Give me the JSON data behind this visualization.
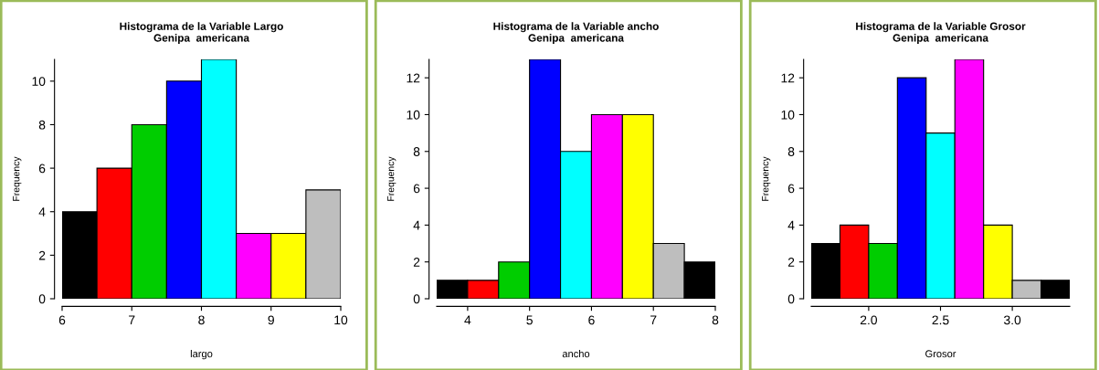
{
  "chart_data": [
    {
      "type": "histogram",
      "title": "Histograma de la Variable Largo\nGenipa  americana",
      "xlabel": "largo",
      "ylabel": "Frequency",
      "bins": [
        6,
        6.5,
        7,
        7.5,
        8,
        8.5,
        9,
        9.5,
        10
      ],
      "values": [
        4,
        6,
        8,
        10,
        11,
        3,
        3,
        5
      ],
      "colors": [
        "#000000",
        "#ff0000",
        "#00cd00",
        "#0000ff",
        "#00ffff",
        "#ff00ff",
        "#ffff00",
        "#bebebe"
      ],
      "xlim": [
        6,
        10
      ],
      "xticks": [
        6,
        7,
        8,
        9,
        10
      ],
      "ylim": [
        0,
        11
      ],
      "yticks": [
        0,
        2,
        4,
        6,
        8,
        10
      ],
      "grid": false
    },
    {
      "type": "histogram",
      "title": "Histograma de la Variable ancho\nGenipa  americana",
      "xlabel": "ancho",
      "ylabel": "Frequency",
      "bins": [
        3.5,
        4,
        4.5,
        5,
        5.5,
        6,
        6.5,
        7,
        7.5,
        8
      ],
      "values": [
        1,
        1,
        2,
        13,
        8,
        10,
        10,
        3,
        2
      ],
      "colors": [
        "#000000",
        "#ff0000",
        "#00cd00",
        "#0000ff",
        "#00ffff",
        "#ff00ff",
        "#ffff00",
        "#bebebe",
        "#000000"
      ],
      "xlim": [
        3.5,
        8
      ],
      "xticks": [
        4,
        5,
        6,
        7,
        8
      ],
      "ylim": [
        0,
        13
      ],
      "yticks": [
        0,
        2,
        4,
        6,
        8,
        10,
        12
      ],
      "grid": false
    },
    {
      "type": "histogram",
      "title": "Histograma de la Variable Grosor\nGenipa  americana",
      "xlabel": "Grosor",
      "ylabel": "Frequency",
      "bins": [
        1.6,
        1.8,
        2.0,
        2.2,
        2.4,
        2.6,
        2.8,
        3.0,
        3.2,
        3.4
      ],
      "values": [
        3,
        4,
        3,
        12,
        9,
        13,
        4,
        1,
        1
      ],
      "colors": [
        "#000000",
        "#ff0000",
        "#00cd00",
        "#0000ff",
        "#00ffff",
        "#ff00ff",
        "#ffff00",
        "#bebebe",
        "#000000"
      ],
      "xlim": [
        1.6,
        3.4
      ],
      "xticks": [
        {
          "value": 2.0,
          "label": "2.0"
        },
        {
          "value": 2.5,
          "label": "2.5"
        },
        {
          "value": 3.0,
          "label": "3.0"
        }
      ],
      "ylim": [
        0,
        13
      ],
      "yticks": [
        0,
        2,
        4,
        6,
        8,
        10,
        12
      ],
      "grid": false
    }
  ]
}
